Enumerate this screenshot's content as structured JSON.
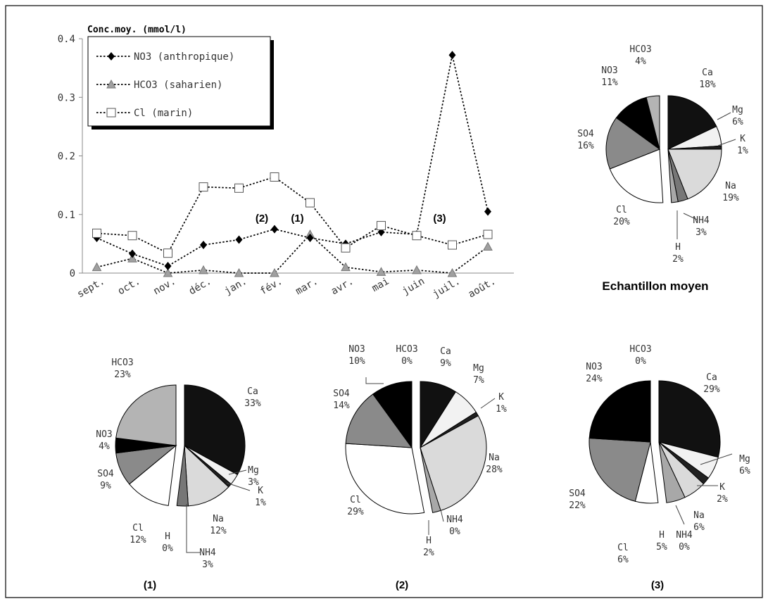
{
  "chart_data": [
    {
      "type": "line",
      "ylabel": "Conc.moy. (mmol/l)",
      "ylim": [
        0,
        0.4
      ],
      "yticks": [
        "0",
        "0.1",
        "0.2",
        "0.3",
        "0.4"
      ],
      "categories": [
        "sept.",
        "oct.",
        "nov.",
        "déc.",
        "jan.",
        "fév.",
        "mar.",
        "avr.",
        "mai",
        "juin",
        "juil.",
        "août."
      ],
      "legend_position": "top-left",
      "series": [
        {
          "name": "NO3 (anthropique)",
          "marker": "diamond",
          "color": "#000000",
          "values": [
            0.06,
            0.033,
            0.012,
            0.048,
            0.057,
            0.075,
            0.06,
            0.05,
            0.07,
            0.066,
            0.372,
            0.105
          ]
        },
        {
          "name": "HCO3 (saharien)",
          "marker": "triangle",
          "color": "#a0a0a0",
          "values": [
            0.01,
            0.025,
            0.0,
            0.005,
            0.0,
            0.0,
            0.066,
            0.01,
            0.002,
            0.005,
            0.0,
            0.045
          ]
        },
        {
          "name": "Cl (marin)",
          "marker": "square",
          "color": "#ffffff",
          "values": [
            0.068,
            0.064,
            0.034,
            0.147,
            0.145,
            0.164,
            0.12,
            0.043,
            0.081,
            0.064,
            0.048,
            0.066
          ]
        }
      ],
      "annotations": [
        {
          "text": "(2)",
          "category": "fév."
        },
        {
          "text": "(1)",
          "category": "mar."
        },
        {
          "text": "(3)",
          "category": "juil."
        }
      ]
    },
    {
      "type": "pie",
      "title": "Echantillon moyen",
      "slices": [
        {
          "name": "Ca",
          "value": 18,
          "pct": "18%"
        },
        {
          "name": "Mg",
          "value": 6,
          "pct": "6%"
        },
        {
          "name": "K",
          "value": 1,
          "pct": "1%"
        },
        {
          "name": "Na",
          "value": 19,
          "pct": "19%"
        },
        {
          "name": "NH4",
          "value": 3,
          "pct": "3%"
        },
        {
          "name": "H",
          "value": 2,
          "pct": "2%"
        },
        {
          "name": "Cl",
          "value": 20,
          "pct": "20%"
        },
        {
          "name": "SO4",
          "value": 16,
          "pct": "16%"
        },
        {
          "name": "NO3",
          "value": 11,
          "pct": "11%"
        },
        {
          "name": "HCO3",
          "value": 4,
          "pct": "4%"
        }
      ]
    },
    {
      "type": "pie",
      "title": "(1)",
      "slices": [
        {
          "name": "Ca",
          "value": 33,
          "pct": "33%"
        },
        {
          "name": "Mg",
          "value": 3,
          "pct": "3%"
        },
        {
          "name": "K",
          "value": 1,
          "pct": "1%"
        },
        {
          "name": "Na",
          "value": 12,
          "pct": "12%"
        },
        {
          "name": "NH4",
          "value": 3,
          "pct": "3%"
        },
        {
          "name": "H",
          "value": 0,
          "pct": "0%"
        },
        {
          "name": "Cl",
          "value": 12,
          "pct": "12%"
        },
        {
          "name": "SO4",
          "value": 9,
          "pct": "9%"
        },
        {
          "name": "NO3",
          "value": 4,
          "pct": "4%"
        },
        {
          "name": "HCO3",
          "value": 23,
          "pct": "23%"
        }
      ]
    },
    {
      "type": "pie",
      "title": "(2)",
      "slices": [
        {
          "name": "Ca",
          "value": 9,
          "pct": "9%"
        },
        {
          "name": "Mg",
          "value": 7,
          "pct": "7%"
        },
        {
          "name": "K",
          "value": 1,
          "pct": "1%"
        },
        {
          "name": "Na",
          "value": 28,
          "pct": "28%"
        },
        {
          "name": "NH4",
          "value": 0,
          "pct": "0%"
        },
        {
          "name": "H",
          "value": 2,
          "pct": "2%"
        },
        {
          "name": "Cl",
          "value": 29,
          "pct": "29%"
        },
        {
          "name": "SO4",
          "value": 14,
          "pct": "14%"
        },
        {
          "name": "NO3",
          "value": 10,
          "pct": "10%"
        },
        {
          "name": "HCO3",
          "value": 0,
          "pct": "0%"
        }
      ]
    },
    {
      "type": "pie",
      "title": "(3)",
      "slices": [
        {
          "name": "Ca",
          "value": 29,
          "pct": "29%"
        },
        {
          "name": "Mg",
          "value": 6,
          "pct": "6%"
        },
        {
          "name": "K",
          "value": 2,
          "pct": "2%"
        },
        {
          "name": "Na",
          "value": 6,
          "pct": "6%"
        },
        {
          "name": "NH4",
          "value": 0,
          "pct": "0%"
        },
        {
          "name": "H",
          "value": 5,
          "pct": "5%"
        },
        {
          "name": "Cl",
          "value": 6,
          "pct": "6%"
        },
        {
          "name": "SO4",
          "value": 22,
          "pct": "22%"
        },
        {
          "name": "NO3",
          "value": 24,
          "pct": "24%"
        },
        {
          "name": "HCO3",
          "value": 0,
          "pct": "0%"
        }
      ]
    }
  ],
  "colors": {
    "Ca": "#111111",
    "Mg": "#f2f2f2",
    "K": "#202020",
    "Na": "#dadada",
    "NH4": "#777777",
    "H": "#a8a8a8",
    "Cl": "#ffffff",
    "SO4": "#8a8a8a",
    "NO3": "#000000",
    "HCO3": "#b4b4b4"
  }
}
